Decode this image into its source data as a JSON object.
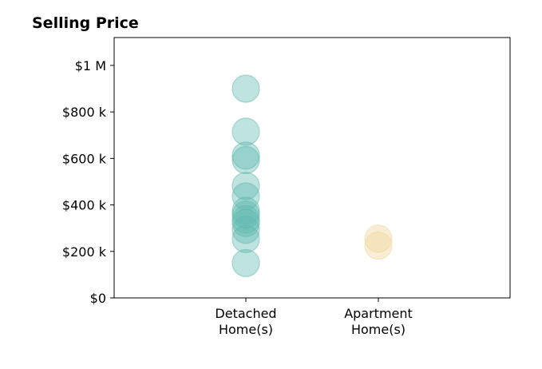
{
  "chart_data": {
    "type": "scatter",
    "title": "Selling Price",
    "xlabel": "",
    "ylabel": "",
    "categories": [
      "Detached\nHome(s)",
      "Apartment\nHome(s)"
    ],
    "ylim": [
      0,
      1120000
    ],
    "yticks": [
      {
        "value": 0,
        "label": "$0"
      },
      {
        "value": 200000,
        "label": "$200 k"
      },
      {
        "value": 400000,
        "label": "$400 k"
      },
      {
        "value": 600000,
        "label": "$600 k"
      },
      {
        "value": 800000,
        "label": "$800 k"
      },
      {
        "value": 1000000,
        "label": "$1 M"
      }
    ],
    "grid": false,
    "series": [
      {
        "category": "Detached\nHome(s)",
        "color": "#5fb8ae",
        "values": [
          900000,
          715000,
          612000,
          593000,
          482000,
          437000,
          375000,
          358000,
          338000,
          322000,
          293000,
          253000,
          150000
        ]
      },
      {
        "category": "Apartment\nHome(s)",
        "color": "#f0d597",
        "values": [
          255000,
          225000
        ]
      }
    ]
  }
}
